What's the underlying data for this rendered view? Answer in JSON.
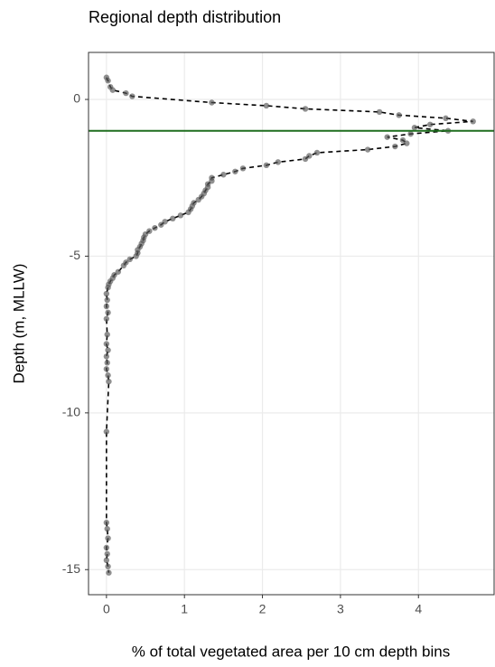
{
  "chart_data": {
    "type": "line",
    "title": "Regional depth distribution",
    "xlabel": "% of total vegetated area per 10 cm depth bins",
    "ylabel": "Depth (m, MLLW)",
    "x": [
      0.0,
      0.02,
      0.05,
      0.08,
      0.25,
      0.33,
      1.35,
      2.05,
      2.55,
      3.5,
      3.75,
      4.35,
      4.7,
      4.15,
      3.95,
      4.38,
      3.9,
      3.6,
      3.8,
      3.85,
      3.7,
      3.35,
      2.7,
      2.6,
      2.55,
      2.2,
      2.05,
      1.75,
      1.65,
      1.5,
      1.35,
      1.35,
      1.3,
      1.3,
      1.27,
      1.25,
      1.22,
      1.18,
      1.12,
      1.1,
      1.08,
      1.05,
      0.95,
      0.85,
      0.75,
      0.7,
      0.62,
      0.55,
      0.5,
      0.48,
      0.47,
      0.45,
      0.43,
      0.4,
      0.4,
      0.38,
      0.3,
      0.25,
      0.22,
      0.15,
      0.1,
      0.08,
      0.05,
      0.03,
      0.02,
      0.0,
      0.01,
      0.0,
      0.02,
      0.0,
      0.01,
      0.0,
      0.02,
      0.0,
      0.01,
      0.0,
      0.02,
      0.03,
      0.0,
      0.0,
      0.01,
      0.02,
      0.0,
      0.01,
      0.0,
      0.02,
      0.03
    ],
    "y": [
      0.7,
      0.6,
      0.4,
      0.3,
      0.2,
      0.1,
      -0.1,
      -0.2,
      -0.3,
      -0.4,
      -0.5,
      -0.6,
      -0.7,
      -0.8,
      -0.9,
      -1.0,
      -1.1,
      -1.2,
      -1.3,
      -1.4,
      -1.5,
      -1.6,
      -1.7,
      -1.8,
      -1.9,
      -2.0,
      -2.1,
      -2.2,
      -2.3,
      -2.4,
      -2.5,
      -2.6,
      -2.7,
      -2.8,
      -2.9,
      -3.0,
      -3.1,
      -3.2,
      -3.3,
      -3.4,
      -3.5,
      -3.6,
      -3.7,
      -3.8,
      -3.9,
      -4.0,
      -4.1,
      -4.2,
      -4.3,
      -4.4,
      -4.5,
      -4.6,
      -4.7,
      -4.8,
      -4.9,
      -5.0,
      -5.1,
      -5.2,
      -5.3,
      -5.5,
      -5.6,
      -5.7,
      -5.8,
      -5.9,
      -6.0,
      -6.2,
      -6.4,
      -6.6,
      -6.8,
      -7.0,
      -7.5,
      -7.8,
      -8.0,
      -8.2,
      -8.4,
      -8.6,
      -8.8,
      -9.0,
      -10.6,
      -13.5,
      -13.7,
      -14.0,
      -14.3,
      -14.5,
      -14.7,
      -14.9,
      -15.1
    ],
    "color": "#555555",
    "line_color": "#000000",
    "hline": {
      "value": -1,
      "color": "#1f6e1f"
    },
    "xlim": [
      -0.23,
      4.97
    ],
    "xticks": [
      0,
      1,
      2,
      3,
      4
    ],
    "ylim": [
      -15.8,
      1.5
    ],
    "yticks": [
      0,
      -5,
      -10,
      -15
    ],
    "grid": true
  }
}
